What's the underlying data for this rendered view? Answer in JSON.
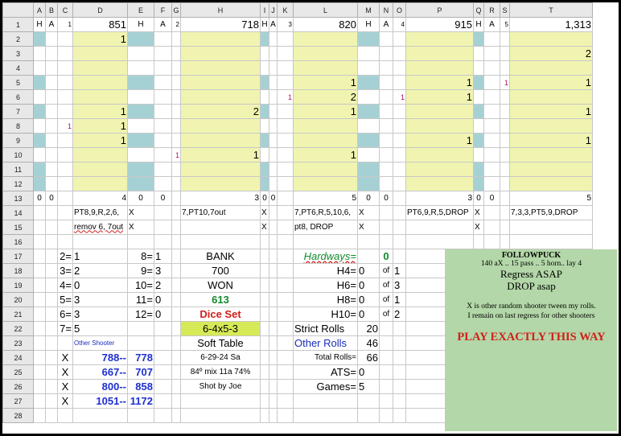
{
  "columns": [
    "A",
    "B",
    "C",
    "D",
    "E",
    "F",
    "G",
    "H",
    "I",
    "J",
    "K",
    "L",
    "M",
    "N",
    "O",
    "P",
    "Q",
    "R",
    "S",
    "T"
  ],
  "rows": [
    "1",
    "2",
    "3",
    "4",
    "5",
    "6",
    "7",
    "8",
    "9",
    "10",
    "11",
    "12",
    "13",
    "14",
    "15",
    "16",
    "17",
    "18",
    "19",
    "20",
    "21",
    "22",
    "23",
    "24",
    "25",
    "26",
    "27",
    "28"
  ],
  "row1": {
    "a": "H",
    "b": "A",
    "c": "1",
    "d": "851",
    "e": "H",
    "f": "A",
    "g": "2",
    "h": "718",
    "i": "H",
    "j": "A",
    "k": "3",
    "l": "820",
    "m": "H",
    "n": "A",
    "o": "4",
    "p": "915",
    "q": "H",
    "r": "A",
    "s": "5",
    "t": "1,313"
  },
  "marks": {
    "d2": "1",
    "t3": "2",
    "l5": "1",
    "p5": "1",
    "s5": "1",
    "t5": "1",
    "k6": "1",
    "l6": "2",
    "o6": "1",
    "p6": "1",
    "d7": "1",
    "h7": "2",
    "l7": "1",
    "t7": "1",
    "c8": "1",
    "d8": "1",
    "d9": "1",
    "p9": "1",
    "t9": "1",
    "g10": "1",
    "h10": "1",
    "l10": "1"
  },
  "row13": {
    "a": "0",
    "b": "0",
    "d": "4",
    "e": "0",
    "f": "0",
    "h": "3",
    "i": "0",
    "j": "0",
    "l": "5",
    "m": "0",
    "n": "0",
    "p": "3",
    "q": "0",
    "r": "0",
    "t": "5"
  },
  "row14": {
    "d": "PT8,9,R,2,6,",
    "e": "X",
    "h": "7,PT10,7out",
    "i": "X",
    "l": "7,PT6,R,5,10,6,",
    "m": "X",
    "p": "PT6,9,R,5,DROP",
    "q": "X",
    "t": "7,3,3,PT5,9,DROP"
  },
  "row15": {
    "d": "remov 6, 7out",
    "e": "X",
    "i": "X",
    "l": "pt8, DROP",
    "m": "X",
    "q": "X"
  },
  "totals_left": [
    {
      "a": "2=",
      "av": "1",
      "b": "8=",
      "bv": "1"
    },
    {
      "a": "3=",
      "av": "2",
      "b": "9=",
      "bv": "3"
    },
    {
      "a": "4=",
      "av": "0",
      "b": "10=",
      "bv": "2"
    },
    {
      "a": "5=",
      "av": "3",
      "b": "11=",
      "bv": "0"
    },
    {
      "a": "6=",
      "av": "3",
      "b": "12=",
      "bv": "0"
    },
    {
      "a": "7=",
      "av": "5"
    }
  ],
  "bank": {
    "bank_label": "BANK",
    "bank_value": "700",
    "won_label": "WON",
    "won_value": "613",
    "dice_set_label": "Dice Set",
    "dice_set_value": "6-4x5-3",
    "table": "Soft Table",
    "date": "6-29-24 Sa",
    "conditions": "84º mix 11a 74%",
    "shooter": "Shot by Joe"
  },
  "hardways": {
    "label": "Hardways=",
    "total": "0",
    "rows": [
      {
        "label": "H4=",
        "value": "0",
        "of": "of",
        "of_value": "1"
      },
      {
        "label": "H6=",
        "value": "0",
        "of": "of",
        "of_value": "3"
      },
      {
        "label": "H8=",
        "value": "0",
        "of": "of",
        "of_value": "1"
      },
      {
        "label": "H10=",
        "value": "0",
        "of": "of",
        "of_value": "2"
      }
    ]
  },
  "stats": {
    "strict_label": "Strict Rolls",
    "strict_value": "20",
    "other_label": "Other Rolls",
    "other_value": "46",
    "total_label": "Total Rolls=",
    "total_value": "66",
    "ats_label": "ATS=",
    "ats_value": "0",
    "games_label": "Games=",
    "games_value": "5"
  },
  "other_shooter": {
    "label": "Other   Shooter",
    "rows": [
      {
        "x": "X",
        "left": "788--",
        "right": "778"
      },
      {
        "x": "X",
        "left": "667--",
        "right": "707"
      },
      {
        "x": "X",
        "left": "800--",
        "right": "858"
      },
      {
        "x": "X",
        "left": "1051--",
        "right": "1172"
      }
    ]
  },
  "note": {
    "title": "FOLLOWPUCK",
    "line1": "140 aX .. 15 pass .. 5 horn.. lay 4",
    "line2": "Regress ASAP",
    "line3": "DROP asap",
    "line4": "X is other random shooter tween my rolls.",
    "line5": "I remain on last regress for other shooters",
    "line6": "PLAY EXACTLY THIS WAY"
  },
  "colors": {
    "teal": "#a6d1d4",
    "yellow": "#f0f4b0",
    "green_note": "#b3d7a8",
    "dice_set": "#d6ea58",
    "won": "#118b2c",
    "red": "#d0201a",
    "blue": "#1f2fd1"
  }
}
